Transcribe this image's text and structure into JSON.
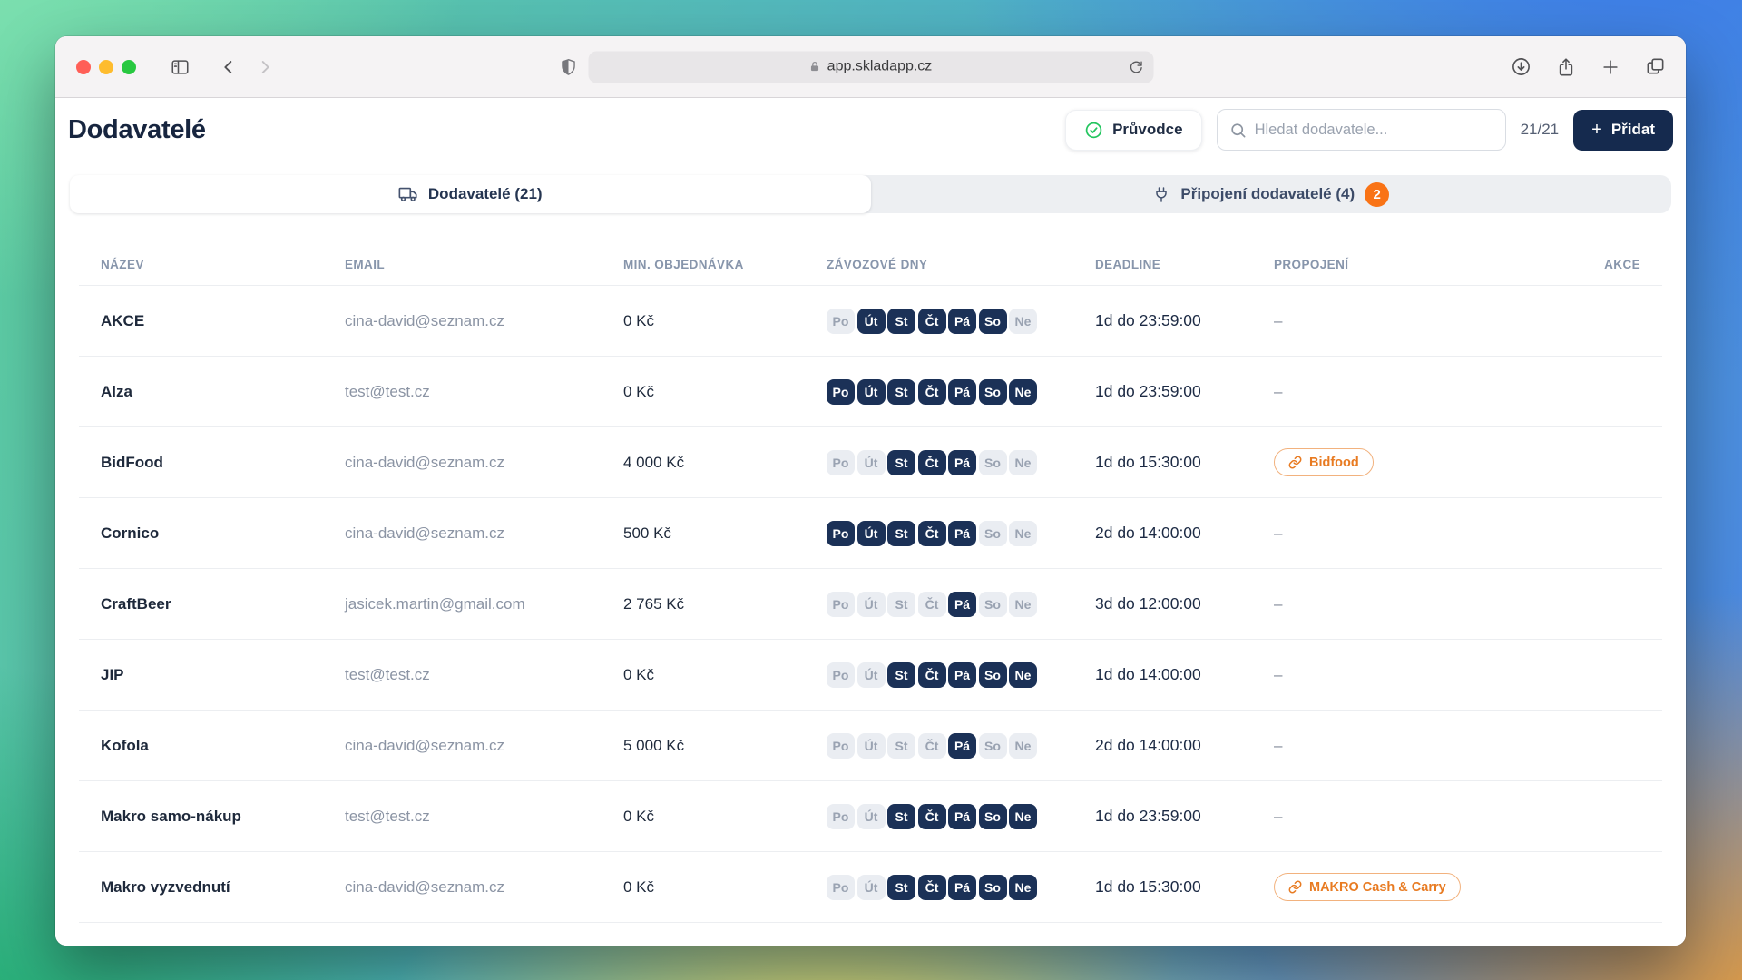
{
  "browser": {
    "url": "app.skladapp.cz",
    "icons": {
      "traffic_lights": [
        "close",
        "minimize",
        "zoom"
      ],
      "left": [
        "sidebar-icon",
        "back-icon",
        "forward-icon"
      ],
      "url": [
        "shield-icon",
        "lock-icon",
        "reload-icon"
      ],
      "right": [
        "download-icon",
        "share-icon",
        "new-tab-icon",
        "tab-overview-icon"
      ]
    }
  },
  "page": {
    "title": "Dodavatelé"
  },
  "header": {
    "guide_label": "Průvodce",
    "search_placeholder": "Hledat dodavatele...",
    "counter": "21/21",
    "add_plus": "+",
    "add_label": "Přidat"
  },
  "tabs": {
    "suppliers": {
      "label": "Dodavatelé (21)",
      "icon": "truck-icon"
    },
    "connected": {
      "label": "Připojení dodavatelé (4)",
      "icon": "plug-icon",
      "badge": "2"
    }
  },
  "table": {
    "columns": [
      "NÁZEV",
      "EMAIL",
      "MIN. OBJEDNÁVKA",
      "ZÁVOZOVÉ DNY",
      "DEADLINE",
      "PROPOJENÍ",
      "AKCE"
    ],
    "day_labels": [
      "Po",
      "Út",
      "St",
      "Čt",
      "Pá",
      "So",
      "Ne"
    ],
    "dash": "–",
    "rows": [
      {
        "name": "AKCE",
        "email": "cina-david@seznam.cz",
        "min_order": "0 Kč",
        "days": [
          0,
          1,
          1,
          1,
          1,
          1,
          0
        ],
        "deadline": "1d do 23:59:00",
        "link": null
      },
      {
        "name": "Alza",
        "email": "test@test.cz",
        "min_order": "0 Kč",
        "days": [
          1,
          1,
          1,
          1,
          1,
          1,
          1
        ],
        "deadline": "1d do 23:59:00",
        "link": null
      },
      {
        "name": "BidFood",
        "email": "cina-david@seznam.cz",
        "min_order": "4 000 Kč",
        "days": [
          0,
          0,
          1,
          1,
          1,
          0,
          0
        ],
        "deadline": "1d do 15:30:00",
        "link": "Bidfood"
      },
      {
        "name": "Cornico",
        "email": "cina-david@seznam.cz",
        "min_order": "500 Kč",
        "days": [
          1,
          1,
          1,
          1,
          1,
          0,
          0
        ],
        "deadline": "2d do 14:00:00",
        "link": null
      },
      {
        "name": "CraftBeer",
        "email": "jasicek.martin@gmail.com",
        "min_order": "2 765 Kč",
        "days": [
          0,
          0,
          0,
          0,
          1,
          0,
          0
        ],
        "deadline": "3d do 12:00:00",
        "link": null
      },
      {
        "name": "JIP",
        "email": "test@test.cz",
        "min_order": "0 Kč",
        "days": [
          0,
          0,
          1,
          1,
          1,
          1,
          1
        ],
        "deadline": "1d do 14:00:00",
        "link": null
      },
      {
        "name": "Kofola",
        "email": "cina-david@seznam.cz",
        "min_order": "5 000 Kč",
        "days": [
          0,
          0,
          0,
          0,
          1,
          0,
          0
        ],
        "deadline": "2d do 14:00:00",
        "link": null
      },
      {
        "name": "Makro samo-nákup",
        "email": "test@test.cz",
        "min_order": "0 Kč",
        "days": [
          0,
          0,
          1,
          1,
          1,
          1,
          1
        ],
        "deadline": "1d do 23:59:00",
        "link": null
      },
      {
        "name": "Makro vyzvednutí",
        "email": "cina-david@seznam.cz",
        "min_order": "0 Kč",
        "days": [
          0,
          0,
          1,
          1,
          1,
          1,
          1
        ],
        "deadline": "1d do 15:30:00",
        "link": "MAKRO Cash & Carry"
      }
    ]
  },
  "colors": {
    "accent_navy": "#152A4E",
    "pill_navy": "#1B3157",
    "accent_orange": "#F97316",
    "chip_orange": "#E87B22",
    "success_green": "#22C55E"
  }
}
